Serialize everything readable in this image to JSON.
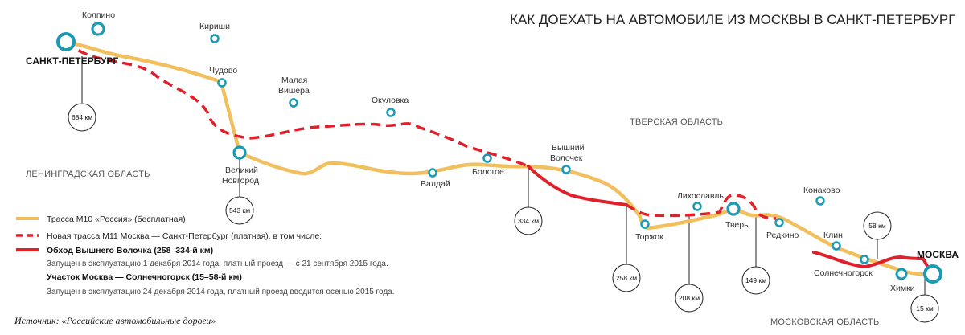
{
  "title": "КАК ДОЕХАТЬ НА АВТОМОБИЛЕ ИЗ МОСКВЫ В САНКТ-ПЕТЕРБУРГ",
  "colors": {
    "m10": "#f2bf5e",
    "m11": "#e0202a",
    "city": "#1a9bb5",
    "text": "#222222"
  },
  "cities": {
    "spb": "САНКТ-ПЕТЕРБУРГ",
    "moscow": "МОСКВА",
    "kolpino": "Колпино",
    "kirishi": "Кириши",
    "chudovo": "Чудово",
    "malaya_vishera": [
      "Малая",
      "Вишера"
    ],
    "okulovka": "Окуловка",
    "vnovgorod": [
      "Великий",
      "Новгород"
    ],
    "valday": "Валдай",
    "bologoe": "Бологое",
    "vvolochek": [
      "Вышний",
      "Волочек"
    ],
    "torzhok": "Торжок",
    "likhoslavl": "Лихославль",
    "tver": "Тверь",
    "konakovo": "Конаково",
    "redkino": "Редкино",
    "klin": "Клин",
    "solnechnogorsk": "Солнечногорск",
    "khimki": "Химки"
  },
  "regions": {
    "leningrad": "ЛЕНИНГРАДСКАЯ ОБЛАСТЬ",
    "tver": "ТВЕРСКАЯ ОБЛАСТЬ",
    "moscow": "МОСКОВСКАЯ ОБЛАСТЬ"
  },
  "distances": {
    "d684": "684 км",
    "d543": "543 км",
    "d334": "334 км",
    "d258": "258 км",
    "d208": "208 км",
    "d149": "149 км",
    "d58": "58 км",
    "d15": "15 км"
  },
  "legend": {
    "m10": "Трасса М10 «Россия» (бесплатная)",
    "m11": "Новая трасса М11 Москва — Санкт-Петербург (платная),  в том числе:",
    "bypass_title": "Обход Вышнего Волочка (258–334-й км)",
    "bypass_note": "Запущен в эксплуатацию 1 декабря 2014 года, платный проезд — с 21 сентября 2015 года.",
    "section_title": "Участок Москва — Солнечногорск (15–58-й км)",
    "section_note": "Запущен в эксплуатацию 24 декабря 2014 года, платный проезд вводится осенью 2015 года."
  },
  "source": "Источник: «Российские автомобильные дороги»"
}
